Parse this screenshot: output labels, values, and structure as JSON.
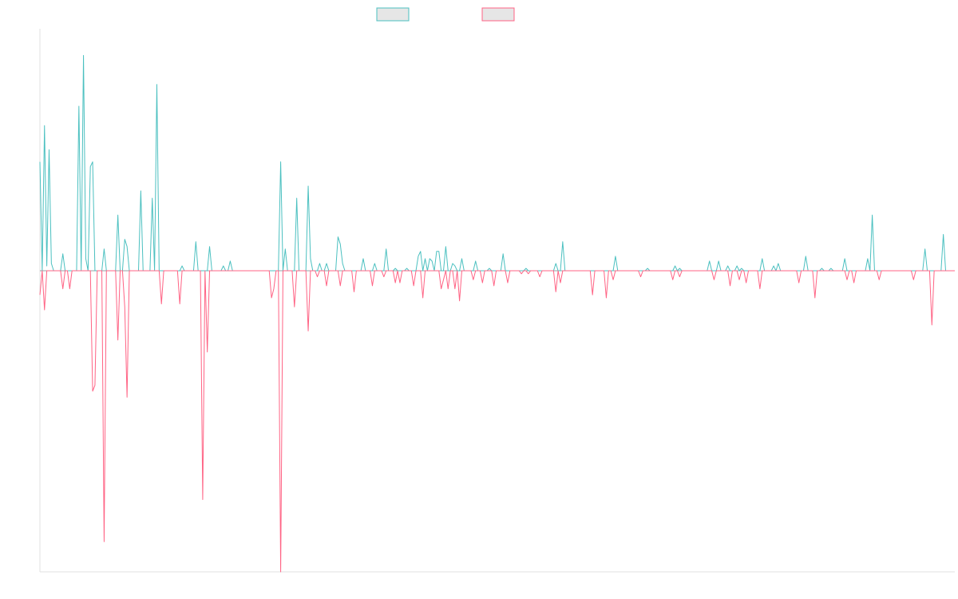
{
  "colors": {
    "teal": "#4bc0c0",
    "pink": "#ff6384",
    "swatch_fill": "#e6e6e6",
    "axis": "#e0e0e0",
    "zero": "#9aa0a6"
  },
  "chart_data": {
    "type": "line",
    "legend": {
      "position": "top-center",
      "show_labels": false
    },
    "x_count": 400,
    "ylim": [
      -1,
      1
    ],
    "grid": false,
    "series": [
      {
        "color": "#4bc0c0",
        "sign": 1,
        "spikes": [
          [
            0,
            0.45
          ],
          [
            2,
            0.6
          ],
          [
            3,
            0.02
          ],
          [
            4,
            0.5
          ],
          [
            5,
            0.03
          ],
          [
            10,
            0.07
          ],
          [
            17,
            0.68
          ],
          [
            19,
            0.89
          ],
          [
            20,
            0.05
          ],
          [
            22,
            0.43
          ],
          [
            23,
            0.45
          ],
          [
            28,
            0.09
          ],
          [
            34,
            0.23
          ],
          [
            37,
            0.13
          ],
          [
            38,
            0.1
          ],
          [
            44,
            0.33
          ],
          [
            49,
            0.3
          ],
          [
            51,
            0.77
          ],
          [
            62,
            0.02
          ],
          [
            68,
            0.12
          ],
          [
            74,
            0.1
          ],
          [
            80,
            0.02
          ],
          [
            83,
            0.04
          ],
          [
            105,
            0.45
          ],
          [
            107,
            0.09
          ],
          [
            112,
            0.3
          ],
          [
            117,
            0.35
          ],
          [
            118,
            0.05
          ],
          [
            122,
            0.03
          ],
          [
            125,
            0.03
          ],
          [
            130,
            0.14
          ],
          [
            131,
            0.11
          ],
          [
            132,
            0.03
          ],
          [
            141,
            0.05
          ],
          [
            146,
            0.03
          ],
          [
            151,
            0.09
          ],
          [
            155,
            0.01
          ],
          [
            160,
            0.01
          ],
          [
            165,
            0.06
          ],
          [
            166,
            0.08
          ],
          [
            168,
            0.05
          ],
          [
            170,
            0.05
          ],
          [
            171,
            0.04
          ],
          [
            173,
            0.08
          ],
          [
            174,
            0.08
          ],
          [
            177,
            0.1
          ],
          [
            180,
            0.03
          ],
          [
            181,
            0.02
          ],
          [
            184,
            0.05
          ],
          [
            190,
            0.04
          ],
          [
            196,
            0.01
          ],
          [
            202,
            0.07
          ],
          [
            212,
            0.01
          ],
          [
            225,
            0.03
          ],
          [
            228,
            0.12
          ],
          [
            251,
            0.06
          ],
          [
            265,
            0.01
          ],
          [
            277,
            0.02
          ],
          [
            279,
            0.01
          ],
          [
            292,
            0.04
          ],
          [
            296,
            0.04
          ],
          [
            300,
            0.02
          ],
          [
            304,
            0.02
          ],
          [
            306,
            0.01
          ],
          [
            315,
            0.05
          ],
          [
            320,
            0.02
          ],
          [
            322,
            0.03
          ],
          [
            334,
            0.06
          ],
          [
            341,
            0.01
          ],
          [
            345,
            0.01
          ],
          [
            351,
            0.05
          ],
          [
            361,
            0.05
          ],
          [
            363,
            0.23
          ],
          [
            386,
            0.09
          ],
          [
            394,
            0.15
          ]
        ]
      },
      {
        "color": "#ff6384",
        "sign": -1,
        "spikes": [
          [
            0,
            0.08
          ],
          [
            2,
            0.13
          ],
          [
            10,
            0.06
          ],
          [
            13,
            0.06
          ],
          [
            23,
            0.4
          ],
          [
            24,
            0.38
          ],
          [
            28,
            0.9
          ],
          [
            34,
            0.23
          ],
          [
            37,
            0.12
          ],
          [
            38,
            0.42
          ],
          [
            53,
            0.11
          ],
          [
            61,
            0.11
          ],
          [
            71,
            0.76
          ],
          [
            73,
            0.27
          ],
          [
            101,
            0.09
          ],
          [
            102,
            0.06
          ],
          [
            105,
            1.0
          ],
          [
            111,
            0.12
          ],
          [
            117,
            0.2
          ],
          [
            121,
            0.02
          ],
          [
            125,
            0.05
          ],
          [
            131,
            0.05
          ],
          [
            137,
            0.07
          ],
          [
            145,
            0.05
          ],
          [
            150,
            0.02
          ],
          [
            155,
            0.04
          ],
          [
            157,
            0.04
          ],
          [
            163,
            0.05
          ],
          [
            167,
            0.09
          ],
          [
            175,
            0.06
          ],
          [
            176,
            0.03
          ],
          [
            178,
            0.06
          ],
          [
            181,
            0.06
          ],
          [
            183,
            0.1
          ],
          [
            189,
            0.03
          ],
          [
            193,
            0.04
          ],
          [
            198,
            0.05
          ],
          [
            204,
            0.04
          ],
          [
            210,
            0.01
          ],
          [
            213,
            0.01
          ],
          [
            218,
            0.02
          ],
          [
            225,
            0.07
          ],
          [
            227,
            0.04
          ],
          [
            241,
            0.08
          ],
          [
            247,
            0.09
          ],
          [
            250,
            0.03
          ],
          [
            262,
            0.02
          ],
          [
            276,
            0.03
          ],
          [
            279,
            0.02
          ],
          [
            294,
            0.03
          ],
          [
            301,
            0.05
          ],
          [
            305,
            0.03
          ],
          [
            308,
            0.04
          ],
          [
            314,
            0.06
          ],
          [
            331,
            0.04
          ],
          [
            338,
            0.09
          ],
          [
            352,
            0.03
          ],
          [
            355,
            0.04
          ],
          [
            366,
            0.03
          ],
          [
            381,
            0.03
          ],
          [
            389,
            0.18
          ]
        ]
      }
    ]
  }
}
